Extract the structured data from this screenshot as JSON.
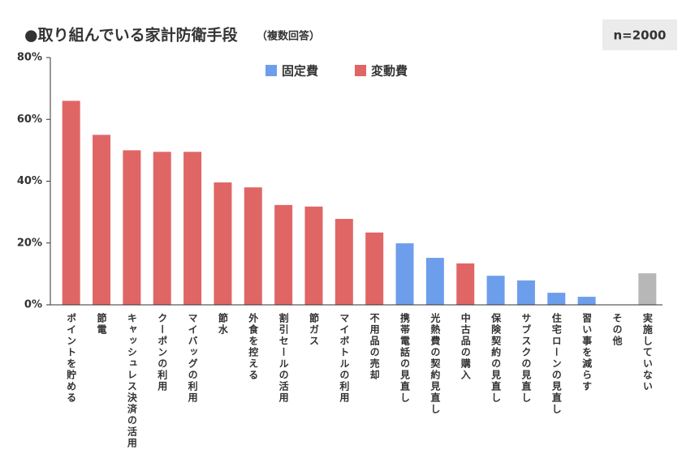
{
  "chart_data": {
    "type": "bar",
    "title": "●取り組んでいる家計防衛手段",
    "subtitle": "（複数回答）",
    "note": "n=2000",
    "categories": [
      "ポイントを貯める",
      "節電",
      "キャッシュレス決済の活用",
      "クーポンの利用",
      "マイバッグの利用",
      "節水",
      "外食を控える",
      "割引セールの活用",
      "節ガス",
      "マイボトルの利用",
      "不用品の売却",
      "携帯電話の見直し",
      "光熱費の契約見直し",
      "中古品の購入",
      "保険契約の見直し",
      "サブスクの見直し",
      "住宅ローンの見直し",
      "習い事を減らす",
      "その他",
      "実施していない"
    ],
    "values": [
      66,
      55,
      50,
      49.5,
      49.5,
      39.6,
      38,
      32.3,
      31.8,
      27.8,
      23.4,
      19.9,
      15.2,
      13.4,
      9.4,
      7.9,
      3.9,
      2.6,
      0,
      10.2
    ],
    "colors": [
      "#e06666",
      "#e06666",
      "#e06666",
      "#e06666",
      "#e06666",
      "#e06666",
      "#e06666",
      "#e06666",
      "#e06666",
      "#e06666",
      "#e06666",
      "#6d9eeb",
      "#6d9eeb",
      "#e06666",
      "#6d9eeb",
      "#6d9eeb",
      "#6d9eeb",
      "#6d9eeb",
      "#e06666",
      "#b7b7b7"
    ],
    "legend": [
      {
        "name": "固定費",
        "color": "#6d9eeb"
      },
      {
        "name": "変動費",
        "color": "#e06666"
      }
    ],
    "ylim": [
      0,
      80
    ],
    "yticks": [
      {
        "value": 0,
        "label": "0%"
      },
      {
        "value": 20,
        "label": "20%"
      },
      {
        "value": 40,
        "label": "40%"
      },
      {
        "value": 60,
        "label": "60%"
      },
      {
        "value": 80,
        "label": "80%"
      }
    ]
  }
}
